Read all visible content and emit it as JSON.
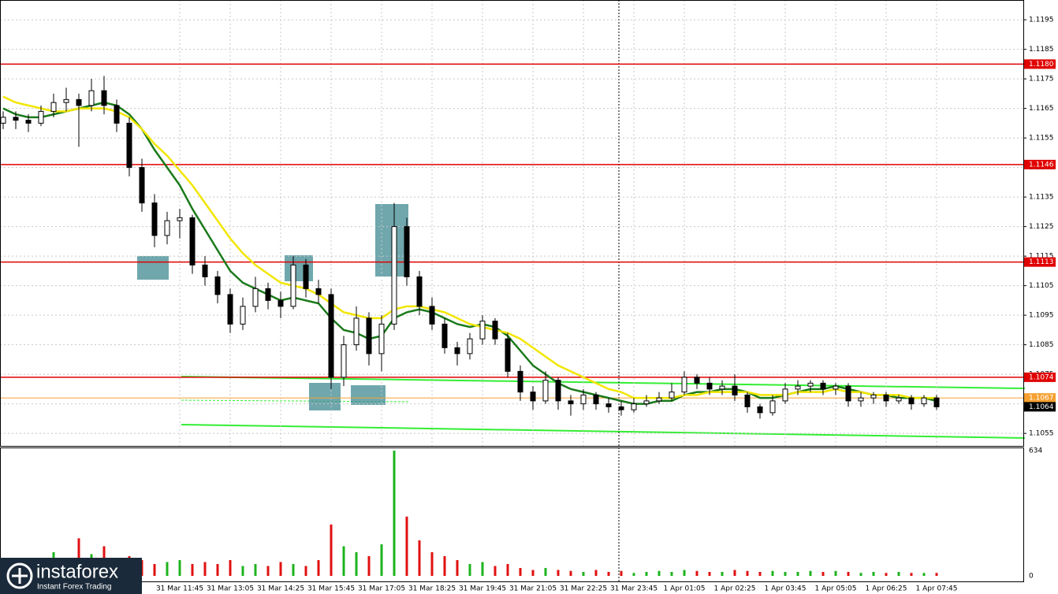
{
  "chart_data": {
    "type": "candlestick",
    "categories": [
      null,
      null,
      null,
      null,
      null,
      null,
      null,
      null,
      null,
      null,
      null,
      null,
      null,
      null,
      "31 Mar 11:45",
      null,
      null,
      null,
      "31 Mar 13:05",
      null,
      null,
      null,
      "31 Mar 14:25",
      null,
      null,
      null,
      "31 Mar 15:45",
      null,
      null,
      null,
      "31 Mar 17:05",
      null,
      null,
      null,
      "31 Mar 18:25",
      null,
      null,
      null,
      "31 Mar 19:45",
      null,
      null,
      null,
      "31 Mar 21:05",
      null,
      null,
      null,
      "31 Mar 22:25",
      null,
      null,
      null,
      "31 Mar 23:45",
      null,
      null,
      null,
      "1 Apr 01:05",
      null,
      null,
      null,
      "1 Apr 02:25",
      null,
      null,
      null,
      "1 Apr 03:45",
      null,
      null,
      null,
      "1 Apr 05:05",
      null,
      null,
      null,
      "1 Apr 06:25",
      null,
      null,
      null,
      "1 Apr 07:45"
    ],
    "ohlc": [
      [
        1.116,
        1.1164,
        1.1158,
        1.1162
      ],
      [
        1.1162,
        1.1164,
        1.1158,
        1.1161
      ],
      [
        1.1161,
        1.1163,
        1.1157,
        1.116
      ],
      [
        1.116,
        1.1166,
        1.1159,
        1.1164
      ],
      [
        1.1164,
        1.117,
        1.1162,
        1.1167
      ],
      [
        1.1167,
        1.1172,
        1.1164,
        1.1168
      ],
      [
        1.1168,
        1.117,
        1.1152,
        1.1166
      ],
      [
        1.1166,
        1.1175,
        1.1164,
        1.1171
      ],
      [
        1.1171,
        1.1176,
        1.1163,
        1.1166
      ],
      [
        1.1166,
        1.1168,
        1.1157,
        1.116
      ],
      [
        1.116,
        1.1162,
        1.1142,
        1.1145
      ],
      [
        1.1145,
        1.1148,
        1.113,
        1.1133
      ],
      [
        1.1133,
        1.1136,
        1.1118,
        1.1122
      ],
      [
        1.1122,
        1.113,
        1.1119,
        1.1127
      ],
      [
        1.1127,
        1.1131,
        1.1121,
        1.1128
      ],
      [
        1.1128,
        1.1129,
        1.1109,
        1.1112
      ],
      [
        1.1112,
        1.1115,
        1.1105,
        1.1108
      ],
      [
        1.1108,
        1.111,
        1.1099,
        1.1102
      ],
      [
        1.1102,
        1.1104,
        1.1089,
        1.1092
      ],
      [
        1.1092,
        1.1101,
        1.109,
        1.1098
      ],
      [
        1.1098,
        1.1108,
        1.1096,
        1.1104
      ],
      [
        1.1104,
        1.1106,
        1.1097,
        1.11
      ],
      [
        1.11,
        1.1103,
        1.1094,
        1.1098
      ],
      [
        1.1098,
        1.1115,
        1.1097,
        1.1112
      ],
      [
        1.1112,
        1.1114,
        1.1101,
        1.1104
      ],
      [
        1.1104,
        1.1107,
        1.1099,
        1.1102
      ],
      [
        1.1102,
        1.1104,
        1.107,
        1.1074
      ],
      [
        1.1074,
        1.1088,
        1.1071,
        1.1085
      ],
      [
        1.1085,
        1.1098,
        1.1083,
        1.1094
      ],
      [
        1.1094,
        1.1096,
        1.1078,
        1.1082
      ],
      [
        1.1082,
        1.1095,
        1.1076,
        1.1092
      ],
      [
        1.1092,
        1.1133,
        1.109,
        1.1125
      ],
      [
        1.1125,
        1.1128,
        1.1105,
        1.1108
      ],
      [
        1.1108,
        1.111,
        1.1095,
        1.1098
      ],
      [
        1.1098,
        1.1101,
        1.109,
        1.1092
      ],
      [
        1.1092,
        1.1094,
        1.1082,
        1.1084
      ],
      [
        1.1084,
        1.1086,
        1.1078,
        1.1082
      ],
      [
        1.1082,
        1.1089,
        1.108,
        1.1087
      ],
      [
        1.1087,
        1.1095,
        1.1085,
        1.1093
      ],
      [
        1.1093,
        1.1094,
        1.1085,
        1.1087
      ],
      [
        1.1087,
        1.1089,
        1.1074,
        1.1076
      ],
      [
        1.1076,
        1.1078,
        1.1066,
        1.1069
      ],
      [
        1.1069,
        1.1071,
        1.1063,
        1.1066
      ],
      [
        1.1066,
        1.1076,
        1.1065,
        1.1073
      ],
      [
        1.1073,
        1.1074,
        1.1063,
        1.1066
      ],
      [
        1.1066,
        1.1068,
        1.1061,
        1.1065
      ],
      [
        1.1065,
        1.107,
        1.1063,
        1.1068
      ],
      [
        1.1068,
        1.1069,
        1.1063,
        1.1065
      ],
      [
        1.1065,
        1.1067,
        1.1062,
        1.1064
      ],
      [
        1.1064,
        1.1066,
        1.1061,
        1.1063
      ],
      [
        1.1063,
        1.1067,
        1.1062,
        1.1065
      ],
      [
        1.1065,
        1.1068,
        1.1064,
        1.1066
      ],
      [
        1.1066,
        1.1069,
        1.1065,
        1.1067
      ],
      [
        1.1067,
        1.1072,
        1.1066,
        1.1069
      ],
      [
        1.1069,
        1.1076,
        1.1068,
        1.1074
      ],
      [
        1.1074,
        1.1075,
        1.107,
        1.1072
      ],
      [
        1.1072,
        1.1074,
        1.1068,
        1.107
      ],
      [
        1.107,
        1.1073,
        1.1068,
        1.1071
      ],
      [
        1.1071,
        1.1075,
        1.1066,
        1.1068
      ],
      [
        1.1068,
        1.1069,
        1.1062,
        1.1064
      ],
      [
        1.1064,
        1.1065,
        1.106,
        1.1062
      ],
      [
        1.1062,
        1.1068,
        1.1061,
        1.1066
      ],
      [
        1.1066,
        1.1072,
        1.1065,
        1.107
      ],
      [
        1.107,
        1.1073,
        1.1068,
        1.1071
      ],
      [
        1.1071,
        1.1073,
        1.1069,
        1.1072
      ],
      [
        1.1072,
        1.1073,
        1.1068,
        1.107
      ],
      [
        1.107,
        1.1072,
        1.1068,
        1.1071
      ],
      [
        1.1071,
        1.1072,
        1.1064,
        1.1066
      ],
      [
        1.1066,
        1.1069,
        1.1064,
        1.1067
      ],
      [
        1.1067,
        1.1069,
        1.1065,
        1.1068
      ],
      [
        1.1068,
        1.1069,
        1.1064,
        1.1066
      ],
      [
        1.1066,
        1.1068,
        1.1065,
        1.1067
      ],
      [
        1.1067,
        1.1068,
        1.1063,
        1.1065
      ],
      [
        1.1065,
        1.1068,
        1.1064,
        1.1067
      ],
      [
        1.1067,
        1.1068,
        1.1063,
        1.1064
      ]
    ],
    "bull_color": "#ffffff",
    "bear_color": "#000000",
    "series": [
      {
        "color": "#1a7a1a",
        "values": [
          1.1165,
          1.1163,
          1.1162,
          1.1162,
          1.1163,
          1.1164,
          1.1165,
          1.1166,
          1.1167,
          1.1166,
          1.1163,
          1.1158,
          1.1151,
          1.1145,
          1.1139,
          1.1131,
          1.1124,
          1.1117,
          1.111,
          1.1106,
          1.1104,
          1.1102,
          1.11,
          1.1101,
          1.11,
          1.1099,
          1.1094,
          1.109,
          1.1089,
          1.1087,
          1.1088,
          1.1094,
          1.1096,
          1.1097,
          1.1096,
          1.1094,
          1.1092,
          1.1091,
          1.1092,
          1.1091,
          1.1088,
          1.1083,
          1.1078,
          1.1075,
          1.1072,
          1.107,
          1.1069,
          1.1068,
          1.1067,
          1.1066,
          1.1065,
          1.1065,
          1.1066,
          1.1066,
          1.1068,
          1.1069,
          1.1069,
          1.107,
          1.107,
          1.1069,
          1.1067,
          1.1067,
          1.1068,
          1.1069,
          1.107,
          1.107,
          1.1071,
          1.107,
          1.1069,
          1.1068,
          1.1068,
          1.1067,
          1.1067,
          1.1067,
          1.1066
        ]
      },
      {
        "color": "#f2e600",
        "values": [
          1.1169,
          1.1167,
          1.1166,
          1.1165,
          1.1164,
          1.1164,
          1.1165,
          1.1165,
          1.1165,
          1.1164,
          1.1162,
          1.1158,
          1.1153,
          1.1149,
          1.1144,
          1.1139,
          1.1133,
          1.1127,
          1.1121,
          1.1116,
          1.1112,
          1.1109,
          1.1106,
          1.1105,
          1.1104,
          1.1102,
          1.1099,
          1.1096,
          1.1095,
          1.1094,
          1.1094,
          1.1097,
          1.1098,
          1.1098,
          1.1097,
          1.1096,
          1.1094,
          1.1092,
          1.1091,
          1.109,
          1.1089,
          1.1087,
          1.1084,
          1.1081,
          1.1078,
          1.1076,
          1.1074,
          1.1072,
          1.107,
          1.1069,
          1.1067,
          1.1067,
          1.1067,
          1.1067,
          1.1068,
          1.1068,
          1.1069,
          1.1069,
          1.1069,
          1.1069,
          1.1068,
          1.1068,
          1.1068,
          1.1069,
          1.1069,
          1.1069,
          1.107,
          1.1069,
          1.1069,
          1.1068,
          1.1068,
          1.1068,
          1.1067,
          1.1067,
          1.1067
        ]
      }
    ],
    "ylim": [
      1.10505,
      1.12017
    ],
    "yticks": [
      1.1195,
      1.1185,
      1.1175,
      1.1165,
      1.1155,
      1.1145,
      1.1135,
      1.1125,
      1.1115,
      1.1105,
      1.1095,
      1.1085,
      1.1075,
      1.1065,
      1.1055
    ],
    "levels": [
      {
        "value": 1.118,
        "label": "1.1180"
      },
      1.1146,
      1.1113,
      1.1074
    ],
    "level_color": "#e00000",
    "ask": 1.1067,
    "ask_color": "#f5a030",
    "bid": 1.1064,
    "grid": true,
    "volume": [
      40,
      60,
      50,
      80,
      120,
      70,
      190,
      110,
      150,
      90,
      100,
      80,
      60,
      70,
      80,
      60,
      70,
      60,
      80,
      50,
      60,
      50,
      70,
      60,
      50,
      80,
      260,
      150,
      120,
      100,
      160,
      634,
      300,
      180,
      120,
      100,
      80,
      60,
      70,
      50,
      60,
      40,
      30,
      40,
      30,
      25,
      20,
      30,
      20,
      25,
      15,
      20,
      25,
      20,
      30,
      25,
      20,
      20,
      30,
      25,
      20,
      25,
      20,
      20,
      25,
      20,
      25,
      20,
      15,
      20,
      15,
      20,
      15,
      15,
      15
    ],
    "volume_ylim": [
      0,
      634
    ],
    "volume_yticks": [
      634,
      0
    ],
    "volume_up_color": "#1db31d",
    "volume_down_color": "#e01010",
    "logo": {
      "name": "instaforex",
      "tagline": "Instant Forex Trading"
    }
  }
}
